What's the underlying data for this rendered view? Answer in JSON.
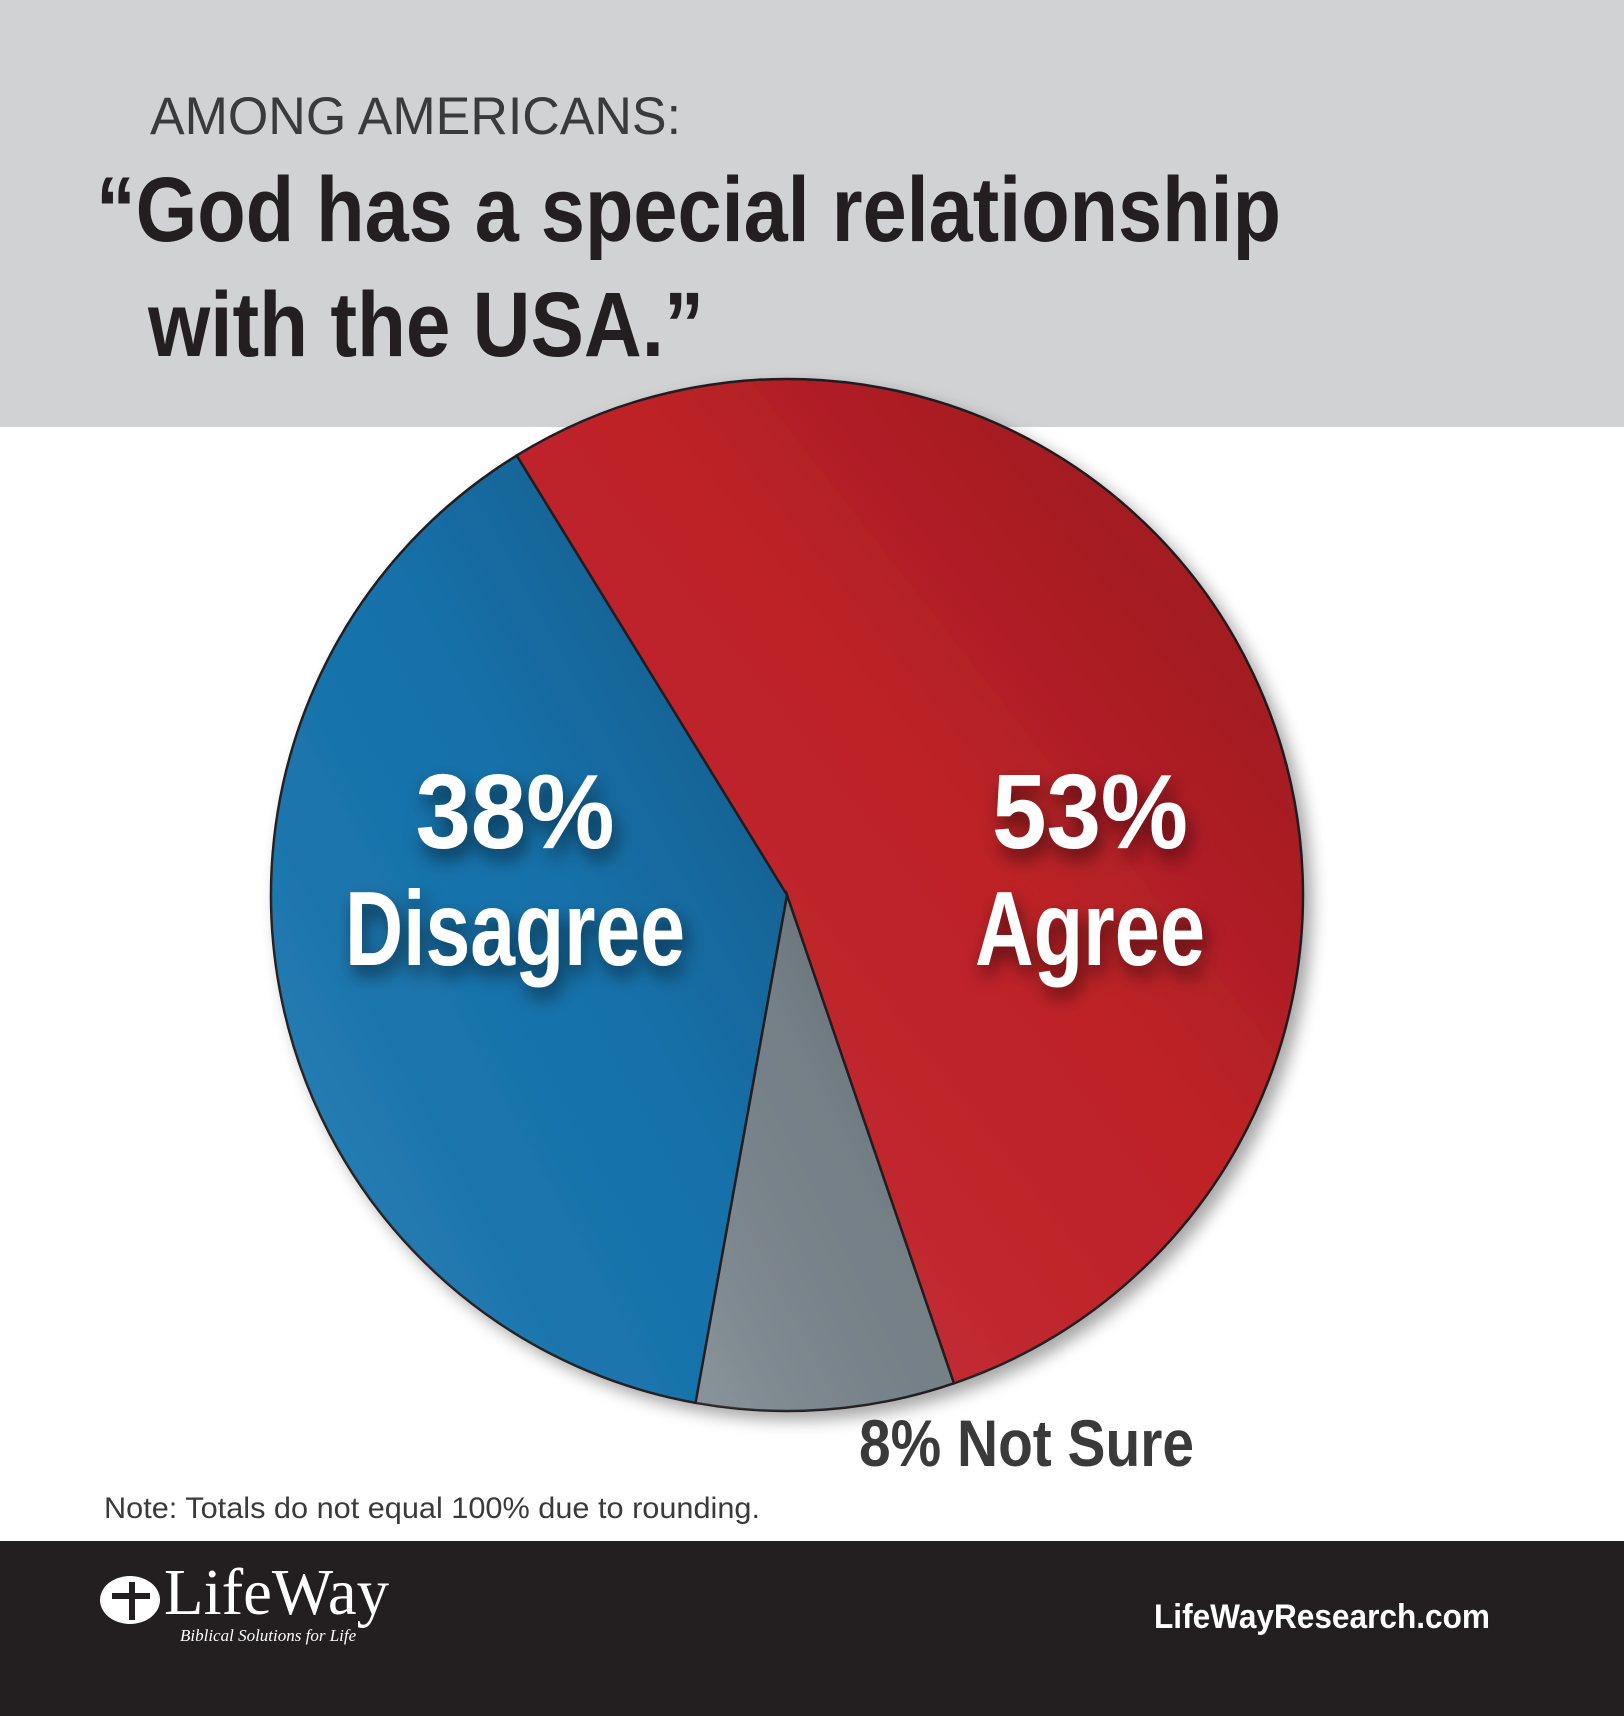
{
  "chart_data": {
    "type": "pie",
    "subtitle": "AMONG AMERICANS:",
    "title": [
      "“God has a special relationship",
      "with the USA.”"
    ],
    "categories": [
      "Agree",
      "Not Sure",
      "Disagree"
    ],
    "values": [
      53,
      8,
      38
    ],
    "value_labels": [
      "53%",
      "8%",
      "38%"
    ],
    "colors": [
      "#c8232a",
      "#7b868e",
      "#1677b3"
    ],
    "note": "Note: Totals do not equal 100% due to rounding."
  },
  "footer": {
    "logo": "LifeWay",
    "tagline": "Biblical Solutions for Life",
    "url": "LifeWayResearch.com"
  }
}
